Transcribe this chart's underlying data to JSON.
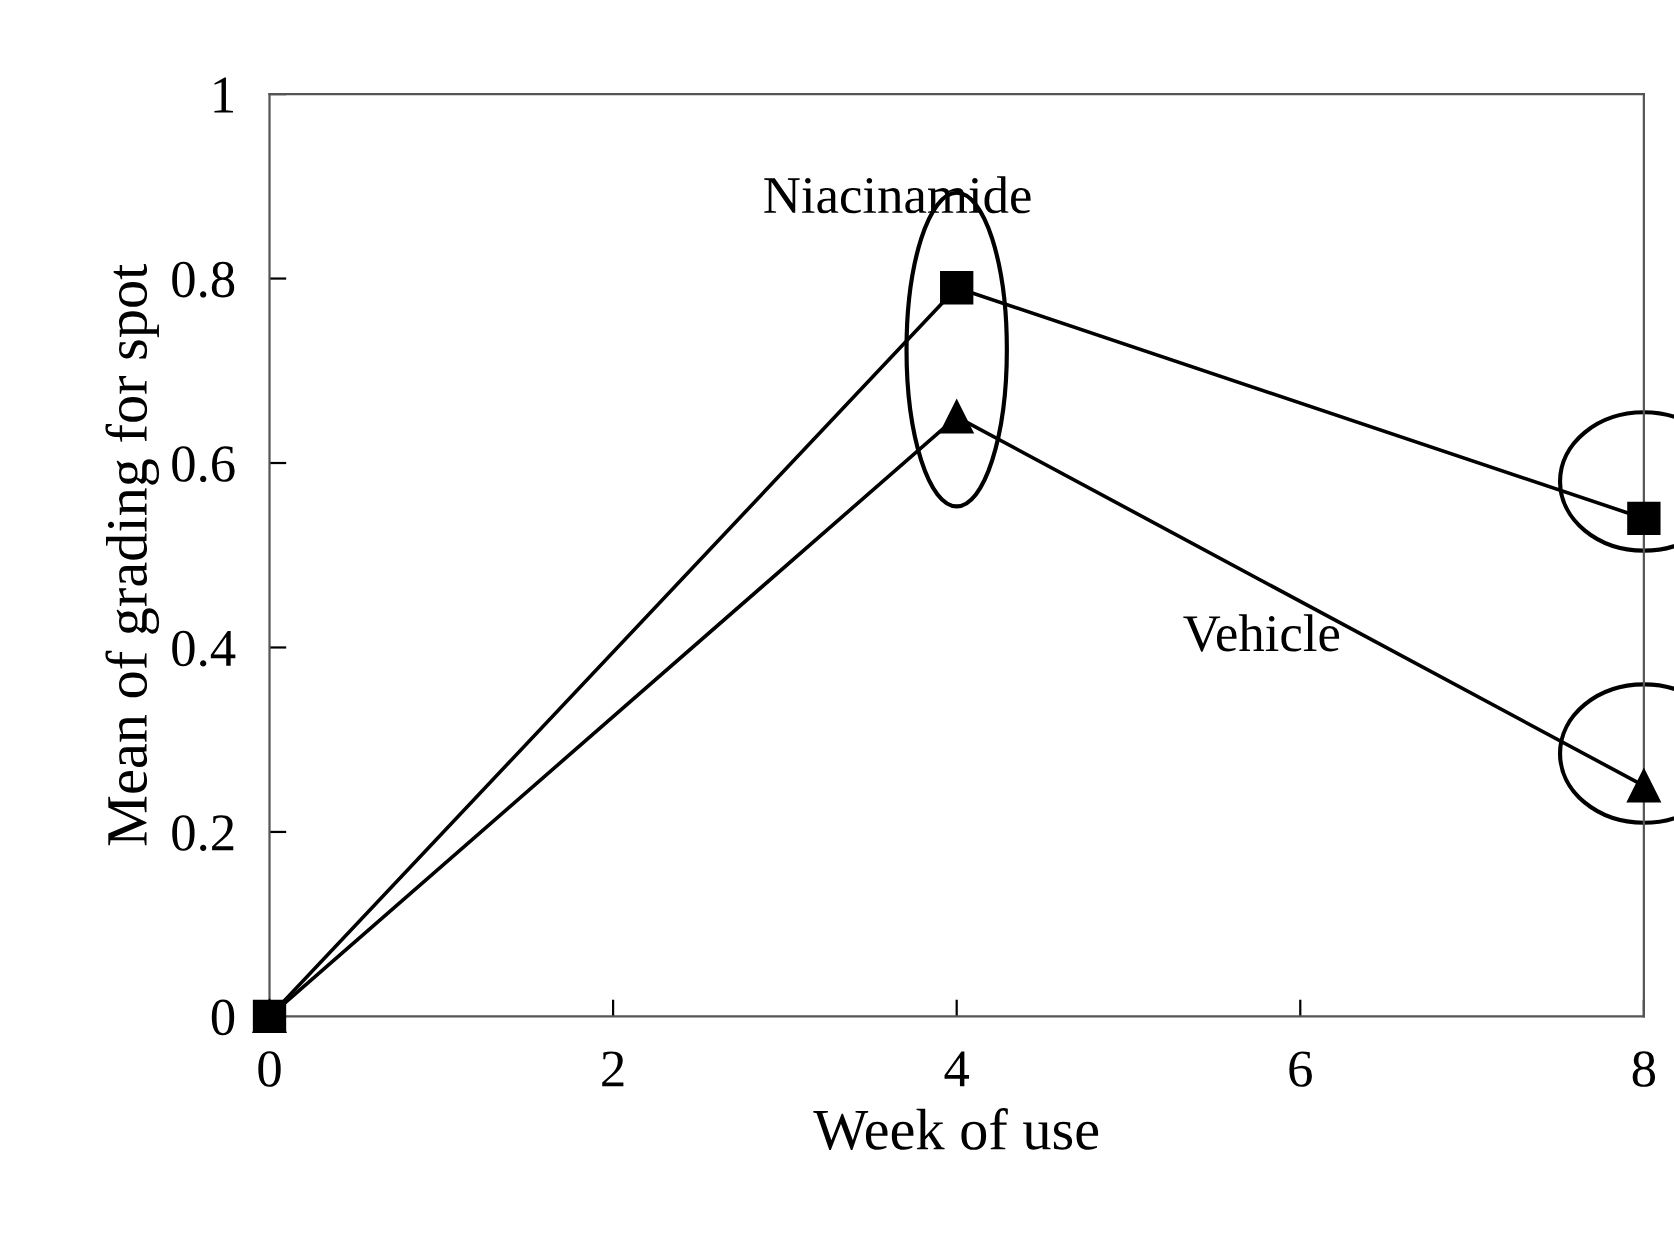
{
  "chart_data": {
    "type": "line",
    "xlabel": "Week of use",
    "ylabel": "Mean of grading for spot",
    "x": [
      0,
      4,
      8
    ],
    "series": [
      {
        "name": "Niacinamide",
        "color": "#000000",
        "values": [
          0,
          0.79,
          0.54
        ],
        "marker": "square"
      },
      {
        "name": "Vehicle",
        "color": "#000000",
        "values": [
          0,
          0.65,
          0.25
        ],
        "marker": "triangle"
      }
    ],
    "xlim": [
      0,
      8
    ],
    "xticks": [
      0,
      2,
      4,
      6,
      8
    ],
    "ylim": [
      0,
      1
    ],
    "yticks": [
      0,
      0.2,
      0.4,
      0.6,
      0.8,
      1
    ],
    "grid": false,
    "legend": false,
    "line_style": "solid"
  }
}
